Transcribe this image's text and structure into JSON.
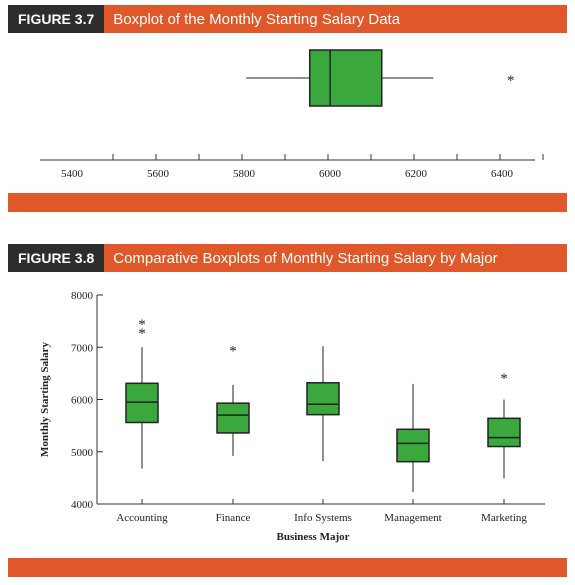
{
  "figure1": {
    "number": "FIGURE 3.7",
    "title": "Boxplot of the Monthly Starting Salary Data"
  },
  "figure2": {
    "number": "FIGURE 3.8",
    "title": "Comparative Boxplots of Monthly Starting Salary by Major"
  },
  "colors": {
    "box_fill": "#3aa83c",
    "header_dark": "#2d2d2d",
    "header_orange": "#e0582a"
  },
  "chart_data": [
    {
      "type": "boxplot",
      "title": "Boxplot of the Monthly Starting Salary Data",
      "xlim": [
        5300,
        6500
      ],
      "ticks": [
        5400,
        5600,
        5800,
        6000,
        6200,
        6400
      ],
      "tick_labels": [
        "5400",
        "5600",
        "5800",
        "6000",
        "6200",
        "6400"
      ],
      "box": {
        "whisker_low": 5710,
        "q1": 5857.5,
        "median": 5905,
        "q3": 6025,
        "whisker_high": 6145,
        "outliers": [
          6325
        ]
      }
    },
    {
      "type": "boxplot",
      "title": "Comparative Boxplots of Monthly Starting Salary by Major",
      "xlabel": "Business Major",
      "ylabel": "Monthly Starting Salary",
      "ylim": [
        4000,
        8000
      ],
      "yticks": [
        4000,
        5000,
        6000,
        7000,
        8000
      ],
      "ytick_labels": [
        "4000",
        "5000",
        "6000",
        "7000",
        "8000"
      ],
      "categories": [
        "Accounting",
        "Finance",
        "Info Systems",
        "Management",
        "Marketing"
      ],
      "boxes": [
        {
          "whisker_low": 4680,
          "q1": 5560,
          "median": 5950,
          "q3": 6310,
          "whisker_high": 7000,
          "outliers": [
            7330,
            7500
          ]
        },
        {
          "whisker_low": 4920,
          "q1": 5360,
          "median": 5700,
          "q3": 5930,
          "whisker_high": 6280,
          "outliers": [
            7000
          ]
        },
        {
          "whisker_low": 4820,
          "q1": 5710,
          "median": 5910,
          "q3": 6320,
          "whisker_high": 7020,
          "outliers": []
        },
        {
          "whisker_low": 4230,
          "q1": 4810,
          "median": 5160,
          "q3": 5430,
          "whisker_high": 6300,
          "outliers": []
        },
        {
          "whisker_low": 4490,
          "q1": 5100,
          "median": 5270,
          "q3": 5640,
          "whisker_high": 6000,
          "outliers": [
            6470
          ]
        }
      ]
    }
  ]
}
